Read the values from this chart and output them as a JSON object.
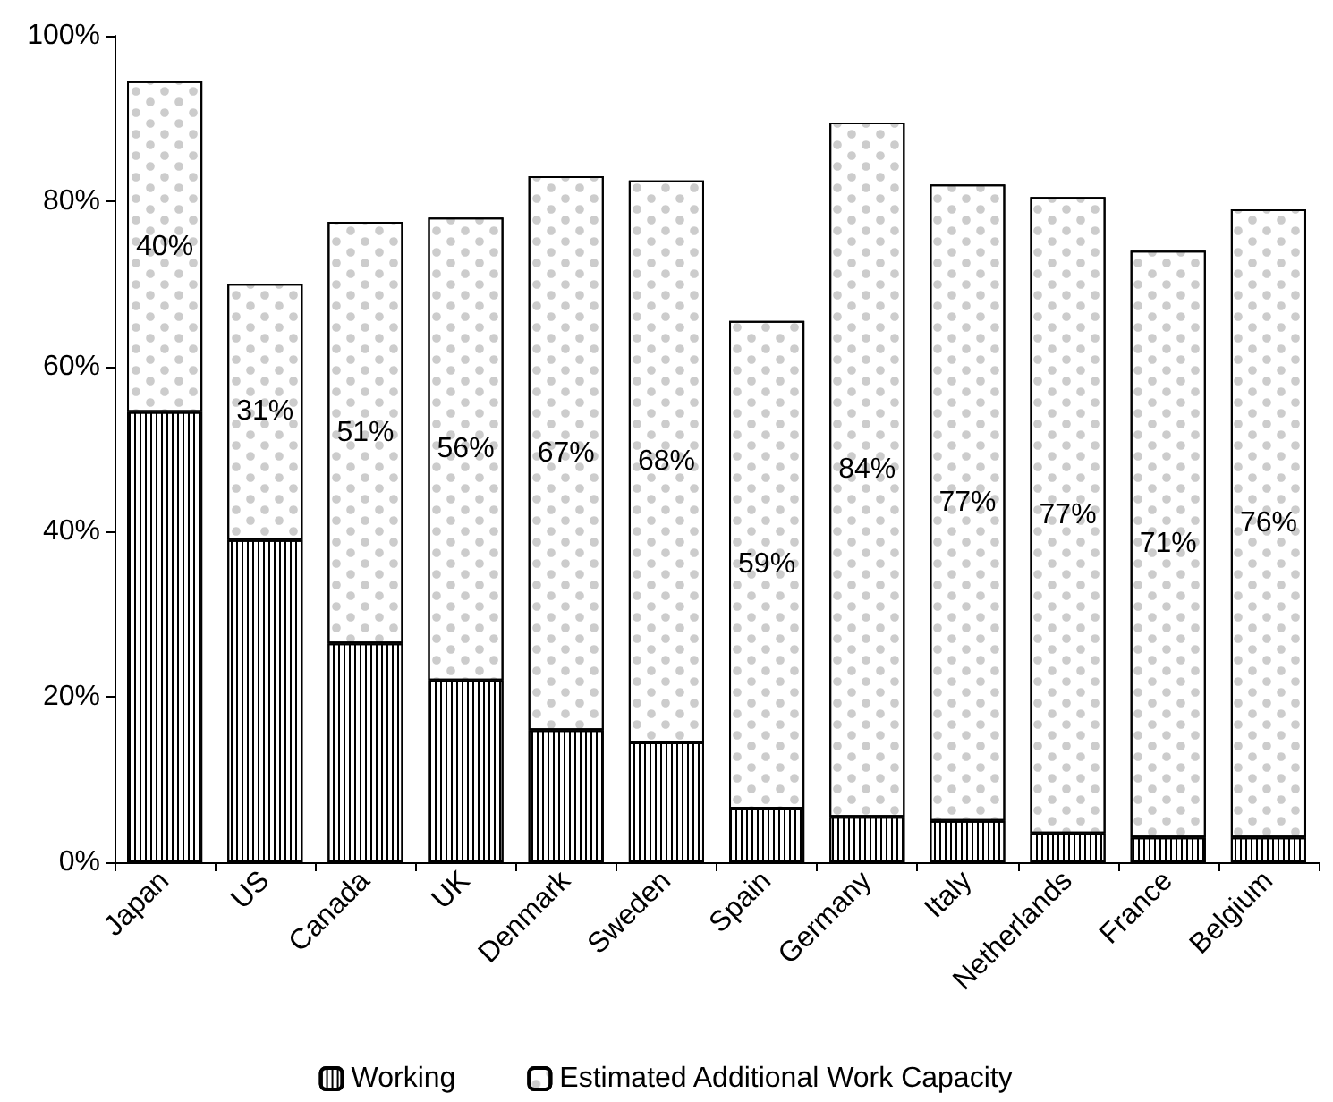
{
  "chart_data": {
    "type": "bar",
    "stacked": true,
    "categories": [
      "Japan",
      "US",
      "Canada",
      "UK",
      "Denmark",
      "Sweden",
      "Spain",
      "Germany",
      "Italy",
      "Netherlands",
      "France",
      "Belgium"
    ],
    "series": [
      {
        "name": "Working",
        "color": "#000000",
        "values": [
          54.5,
          39,
          26.5,
          22,
          16,
          14.5,
          6.5,
          5.5,
          5,
          3.5,
          3,
          3
        ]
      },
      {
        "name": "Estimated Additional Work Capacity",
        "color": "#ffffff",
        "values": [
          40,
          31,
          51,
          56,
          67,
          68,
          59,
          84,
          77,
          77,
          71,
          76
        ],
        "value_labels": [
          "40%",
          "31%",
          "51%",
          "56%",
          "67%",
          "68%",
          "59%",
          "84%",
          "77%",
          "77%",
          "71%",
          "76%"
        ]
      }
    ],
    "ylim": [
      0,
      100
    ],
    "yticks": [
      {
        "value": 0,
        "label": "0%"
      },
      {
        "value": 20,
        "label": "20%"
      },
      {
        "value": 40,
        "label": "40%"
      },
      {
        "value": 60,
        "label": "60%"
      },
      {
        "value": 80,
        "label": "80%"
      },
      {
        "value": 100,
        "label": "100%"
      }
    ],
    "grid": false,
    "legend": "bottom"
  }
}
